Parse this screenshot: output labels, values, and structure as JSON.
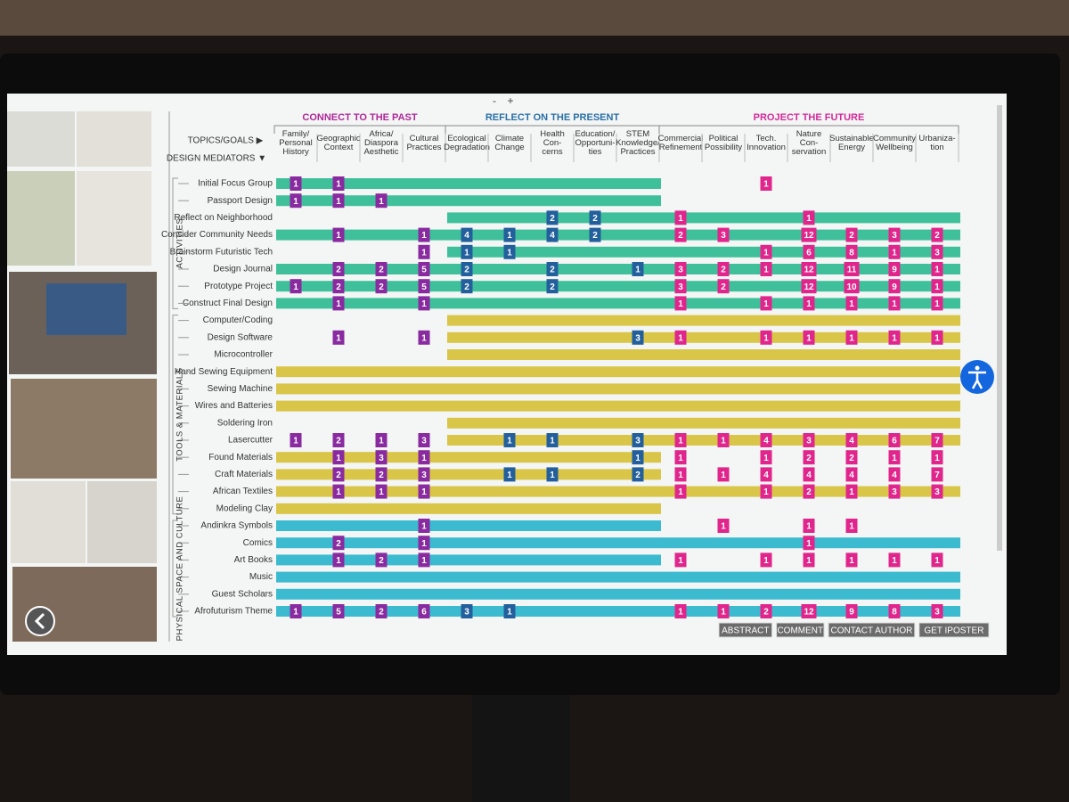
{
  "toolbar": {
    "zoom_out": "-",
    "zoom_in": "+"
  },
  "header": {
    "topics_label": "TOPICS/GOALS ▶",
    "mediators_label": "DESIGN MEDIATORS ▼"
  },
  "column_groups": [
    {
      "title": "CONNECT TO THE PAST",
      "color": "#b0289a",
      "cell_color": "#8a2aa0",
      "columns": [
        "Family/ Personal History",
        "Geographic Context",
        "Africa/ Diaspora Aesthetic",
        "Cultural Practices"
      ]
    },
    {
      "title": "REFLECT ON THE PRESENT",
      "color": "#2a6fa8",
      "cell_color": "#235f9c",
      "columns": [
        "Ecological Degradation",
        "Climate Change",
        "Health Con- cerns",
        "Education/ Opportuni- ties",
        "STEM Knowledge/ Practices"
      ]
    },
    {
      "title": "PROJECT THE FUTURE",
      "color": "#d42a9a",
      "cell_color": "#e0268c",
      "columns": [
        "Commercial Refinement",
        "Political Possibility",
        "Tech. Innovation",
        "Nature Con- servation",
        "Sustainable Energy",
        "Community Wellbeing",
        "Urbaniza- tion"
      ]
    }
  ],
  "row_groups": [
    {
      "title": "ACTIVITIES",
      "bar_color": "#3fc09a",
      "rows": [
        {
          "label": "Initial Focus Group",
          "span": [
            0,
            8
          ],
          "cells": [
            1,
            1,
            null,
            null,
            null,
            null,
            null,
            null,
            null,
            null,
            null,
            1,
            null,
            null,
            null,
            null
          ]
        },
        {
          "label": "Passport Design",
          "span": [
            0,
            8
          ],
          "cells": [
            1,
            1,
            1,
            null,
            null,
            null,
            null,
            null,
            null,
            null,
            null,
            null,
            null,
            null,
            null,
            null
          ]
        },
        {
          "label": "Reflect on Neighborhood",
          "span": [
            4,
            15
          ],
          "cells": [
            null,
            null,
            null,
            null,
            null,
            null,
            2,
            2,
            null,
            1,
            null,
            null,
            1,
            null,
            null,
            null
          ]
        },
        {
          "label": "Consider Community Needs",
          "span": [
            0,
            15
          ],
          "cells": [
            null,
            1,
            null,
            1,
            4,
            1,
            4,
            2,
            null,
            2,
            3,
            null,
            12,
            2,
            3,
            2
          ]
        },
        {
          "label": "Brainstorm Futuristic Tech",
          "span": [
            4,
            15
          ],
          "cells": [
            null,
            null,
            null,
            1,
            1,
            1,
            null,
            null,
            null,
            null,
            null,
            1,
            6,
            8,
            1,
            3
          ]
        },
        {
          "label": "Design Journal",
          "span": [
            0,
            15
          ],
          "cells": [
            null,
            2,
            2,
            5,
            2,
            null,
            2,
            null,
            1,
            3,
            2,
            1,
            12,
            11,
            9,
            1
          ]
        },
        {
          "label": "Prototype Project",
          "span": [
            0,
            15
          ],
          "cells": [
            1,
            2,
            2,
            5,
            2,
            null,
            2,
            null,
            null,
            3,
            2,
            null,
            12,
            10,
            9,
            1
          ]
        },
        {
          "label": "Construct Final Design",
          "span": [
            0,
            15
          ],
          "cells": [
            null,
            1,
            null,
            1,
            null,
            null,
            null,
            null,
            null,
            1,
            null,
            1,
            1,
            1,
            1,
            1
          ]
        }
      ]
    },
    {
      "title": "TOOLS & MATERIALS",
      "bar_color": "#d9c548",
      "rows": [
        {
          "label": "Computer/Coding",
          "span": [
            4,
            15
          ],
          "cells": [
            null,
            null,
            null,
            null,
            null,
            null,
            null,
            null,
            null,
            null,
            null,
            null,
            null,
            null,
            null,
            null
          ]
        },
        {
          "label": "Design Software",
          "span": [
            4,
            15
          ],
          "cells": [
            null,
            1,
            null,
            1,
            null,
            null,
            null,
            null,
            3,
            1,
            null,
            1,
            1,
            1,
            1,
            1
          ]
        },
        {
          "label": "Microcontroller",
          "span": [
            4,
            15
          ],
          "cells": [
            null,
            null,
            null,
            null,
            null,
            null,
            null,
            null,
            null,
            null,
            null,
            null,
            null,
            null,
            null,
            null
          ]
        },
        {
          "label": "Hand Sewing Equipment",
          "span": [
            0,
            15
          ],
          "cells": [
            null,
            null,
            null,
            null,
            null,
            null,
            null,
            null,
            null,
            null,
            null,
            null,
            null,
            null,
            null,
            null
          ]
        },
        {
          "label": "Sewing Machine",
          "span": [
            0,
            15
          ],
          "cells": [
            null,
            null,
            null,
            null,
            null,
            null,
            null,
            null,
            null,
            null,
            null,
            null,
            null,
            null,
            null,
            null
          ]
        },
        {
          "label": "Wires and Batteries",
          "span": [
            0,
            15
          ],
          "cells": [
            null,
            null,
            null,
            null,
            null,
            null,
            null,
            null,
            null,
            null,
            null,
            null,
            null,
            null,
            null,
            null
          ]
        },
        {
          "label": "Soldering Iron",
          "span": [
            4,
            15
          ],
          "cells": [
            null,
            null,
            null,
            null,
            null,
            null,
            null,
            null,
            null,
            null,
            null,
            null,
            null,
            null,
            null,
            null
          ]
        },
        {
          "label": "Lasercutter",
          "span": [
            4,
            15
          ],
          "cells": [
            1,
            2,
            1,
            3,
            null,
            1,
            1,
            null,
            3,
            1,
            1,
            4,
            3,
            4,
            6,
            7
          ]
        },
        {
          "label": "Found Materials",
          "span": [
            0,
            8
          ],
          "cells": [
            null,
            1,
            3,
            1,
            null,
            null,
            null,
            null,
            1,
            1,
            null,
            1,
            2,
            2,
            1,
            1
          ]
        },
        {
          "label": "Craft Materials",
          "span": [
            0,
            8
          ],
          "cells": [
            null,
            2,
            2,
            3,
            null,
            1,
            1,
            null,
            2,
            1,
            1,
            4,
            4,
            4,
            4,
            7
          ]
        },
        {
          "label": "African Textiles",
          "span": [
            0,
            15
          ],
          "cells": [
            null,
            1,
            1,
            1,
            null,
            null,
            null,
            null,
            null,
            1,
            null,
            1,
            2,
            1,
            3,
            3
          ]
        },
        {
          "label": "Modeling Clay",
          "span": [
            0,
            8
          ],
          "cells": [
            null,
            null,
            null,
            null,
            null,
            null,
            null,
            null,
            null,
            null,
            null,
            null,
            null,
            null,
            null,
            null
          ]
        }
      ]
    },
    {
      "title": "PHYSICAL SPACE AND CULTURE",
      "bar_color": "#3cbad0",
      "rows": [
        {
          "label": "Andinkra Symbols",
          "span": [
            0,
            8
          ],
          "cells": [
            null,
            null,
            null,
            1,
            null,
            null,
            null,
            null,
            null,
            null,
            1,
            null,
            1,
            1,
            null,
            null
          ]
        },
        {
          "label": "Comics",
          "span": [
            0,
            15
          ],
          "cells": [
            null,
            2,
            null,
            1,
            null,
            null,
            null,
            null,
            null,
            null,
            null,
            null,
            1,
            null,
            null,
            null
          ]
        },
        {
          "label": "Art Books",
          "span": [
            0,
            8
          ],
          "cells": [
            null,
            1,
            2,
            1,
            null,
            null,
            null,
            null,
            null,
            1,
            null,
            1,
            1,
            1,
            1,
            1
          ]
        },
        {
          "label": "Music",
          "span": [
            0,
            15
          ],
          "cells": [
            null,
            null,
            null,
            null,
            null,
            null,
            null,
            null,
            null,
            null,
            null,
            null,
            null,
            null,
            null,
            null
          ]
        },
        {
          "label": "Guest Scholars",
          "span": [
            0,
            15
          ],
          "cells": [
            null,
            null,
            null,
            null,
            null,
            null,
            null,
            null,
            null,
            null,
            null,
            null,
            null,
            null,
            null,
            null
          ]
        },
        {
          "label": "Afrofuturism Theme",
          "span": [
            0,
            15
          ],
          "cells": [
            1,
            5,
            2,
            6,
            3,
            1,
            null,
            null,
            null,
            1,
            1,
            2,
            12,
            9,
            8,
            3
          ]
        }
      ]
    }
  ],
  "buttons": [
    "ABSTRACT",
    "COMMENT",
    "CONTACT AUTHOR",
    "GET IPOSTER"
  ]
}
